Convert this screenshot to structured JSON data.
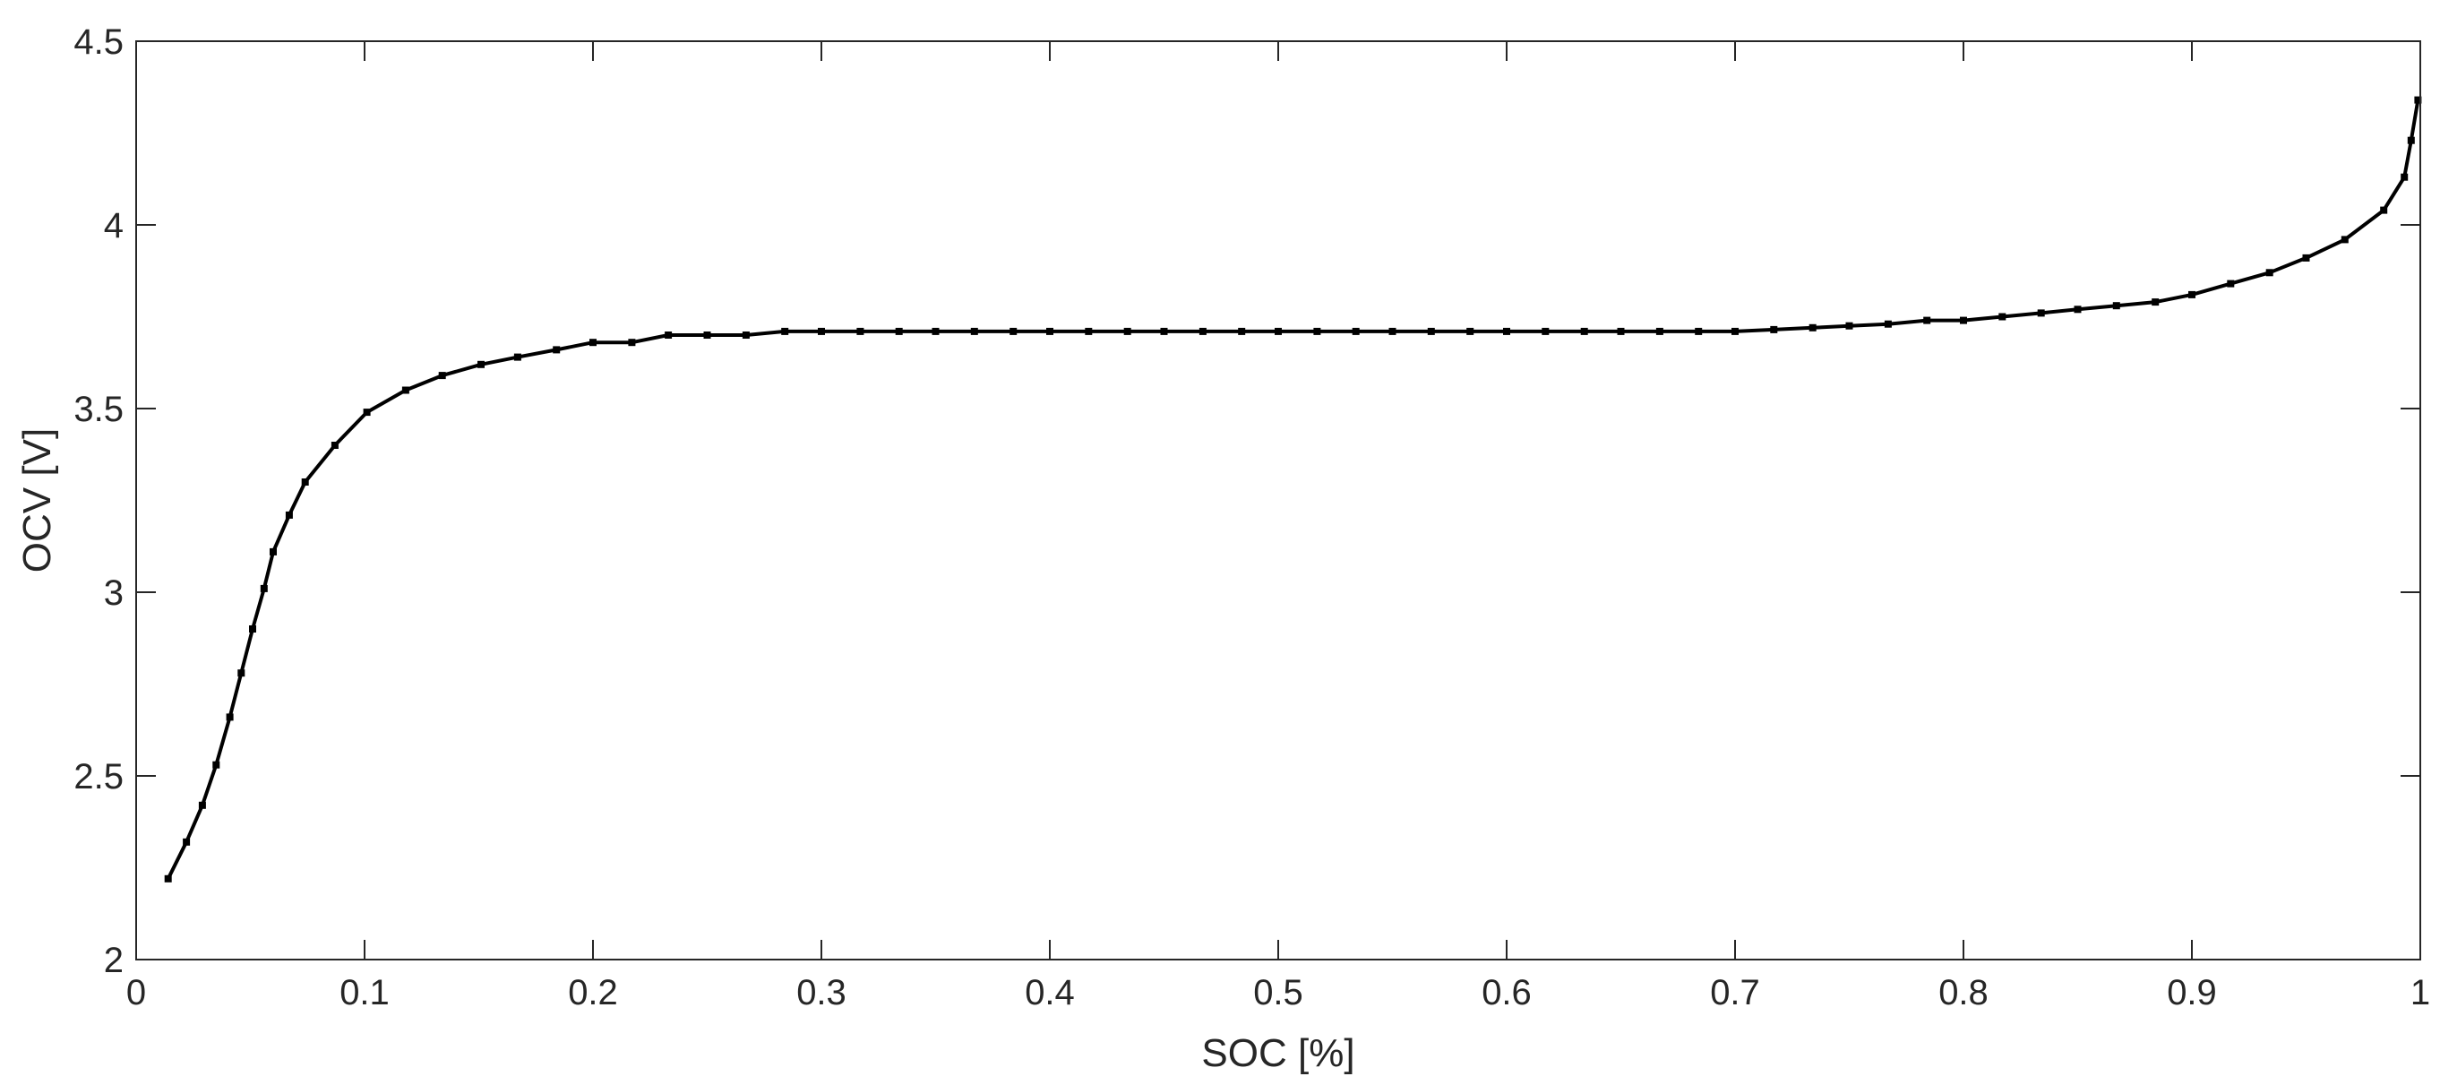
{
  "chart_data": {
    "type": "line",
    "xlabel": "SOC [%]",
    "ylabel": "OCV [V]",
    "xlim": [
      0,
      1
    ],
    "ylim": [
      2,
      4.5
    ],
    "grid": false,
    "box": true,
    "x_ticks": [
      "0",
      "0.1",
      "0.2",
      "0.3",
      "0.4",
      "0.5",
      "0.6",
      "0.7",
      "0.8",
      "0.9",
      "1"
    ],
    "y_ticks": [
      "2",
      "2.5",
      "3",
      "3.5",
      "4",
      "4.5"
    ],
    "series": [
      {
        "color": "#000000",
        "marker": "square",
        "x": [
          0.014,
          0.022,
          0.029,
          0.035,
          0.041,
          0.046,
          0.051,
          0.056,
          0.06,
          0.067,
          0.074,
          0.087,
          0.101,
          0.118,
          0.134,
          0.151,
          0.167,
          0.184,
          0.2,
          0.217,
          0.233,
          0.25,
          0.267,
          0.284,
          0.3,
          0.317,
          0.334,
          0.35,
          0.367,
          0.384,
          0.4,
          0.417,
          0.434,
          0.45,
          0.467,
          0.484,
          0.5,
          0.517,
          0.534,
          0.55,
          0.567,
          0.584,
          0.6,
          0.617,
          0.634,
          0.65,
          0.667,
          0.684,
          0.7,
          0.717,
          0.734,
          0.75,
          0.767,
          0.784,
          0.8,
          0.817,
          0.834,
          0.85,
          0.867,
          0.884,
          0.9,
          0.917,
          0.934,
          0.95,
          0.967,
          0.984,
          0.993,
          0.996,
          0.999
        ],
        "y": [
          2.22,
          2.32,
          2.42,
          2.53,
          2.66,
          2.78,
          2.9,
          3.01,
          3.11,
          3.21,
          3.3,
          3.4,
          3.49,
          3.55,
          3.59,
          3.62,
          3.64,
          3.66,
          3.68,
          3.68,
          3.7,
          3.7,
          3.7,
          3.71,
          3.71,
          3.71,
          3.71,
          3.71,
          3.71,
          3.71,
          3.71,
          3.71,
          3.71,
          3.71,
          3.71,
          3.71,
          3.71,
          3.71,
          3.71,
          3.71,
          3.71,
          3.71,
          3.71,
          3.71,
          3.71,
          3.71,
          3.71,
          3.71,
          3.71,
          3.715,
          3.72,
          3.725,
          3.73,
          3.74,
          3.74,
          3.75,
          3.76,
          3.77,
          3.78,
          3.79,
          3.81,
          3.84,
          3.87,
          3.91,
          3.96,
          4.04,
          4.13,
          4.23,
          4.34
        ]
      }
    ]
  }
}
